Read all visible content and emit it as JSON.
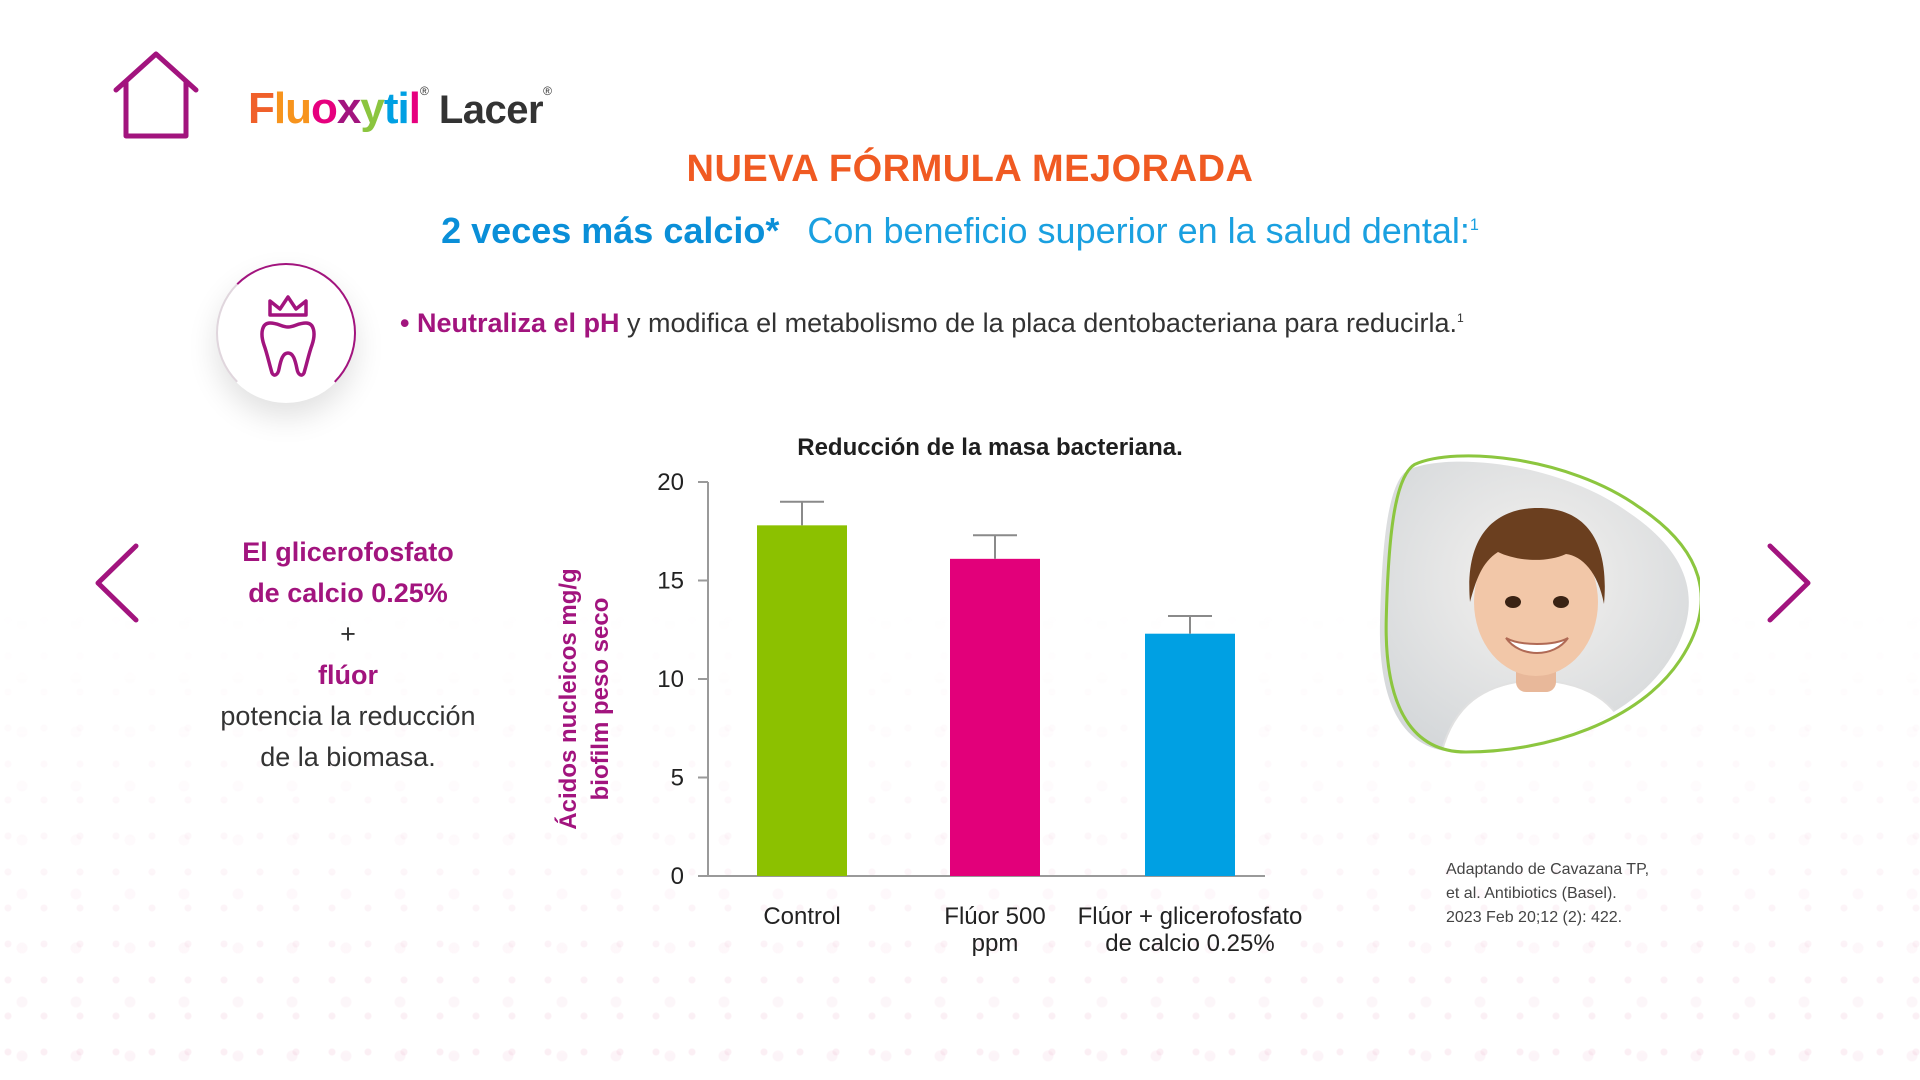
{
  "logo": {
    "brand_letters": [
      "F",
      "l",
      "u",
      "o",
      "x",
      "y",
      "t",
      "i",
      "l"
    ],
    "brand_colors": [
      "#f0602a",
      "#f7941d",
      "#f7941d",
      "#e6007e",
      "#a2147e",
      "#8bc53f",
      "#00a0e3",
      "#00a0e3",
      "#e6007e"
    ],
    "reg_mark": "®",
    "company": "Lacer",
    "company_reg": "®"
  },
  "headline": "NUEVA FÓRMULA MEJORADA",
  "subline": {
    "strong": "2 veces más calcio*",
    "text": "Con beneficio superior en la salud dental:",
    "ref": "1"
  },
  "bullet": {
    "marker": "•",
    "strong": "Neutraliza el pH",
    "text": " y modifica el metabolismo de la placa dentobacteriana para reducirla.",
    "ref": "1"
  },
  "side_text": {
    "line1": "El glicerofosfato",
    "line2": "de calcio 0.25%",
    "plus": "+",
    "line3": "flúor",
    "line4": "potencia la reducción",
    "line5": "de la biomasa."
  },
  "colors": {
    "accent_purple": "#a2147e",
    "accent_orange": "#f05a22",
    "accent_blue": "#1aa0e0"
  },
  "chart_data": {
    "type": "bar",
    "title": "Reducción de la masa bacteriana.",
    "ylabel": [
      "Ácidos nucleicos mg/g",
      "biofilm peso seco"
    ],
    "categories": [
      [
        "Control"
      ],
      [
        "Flúor 500",
        "ppm"
      ],
      [
        "Flúor + glicerofosfato",
        "de calcio 0.25%"
      ]
    ],
    "values": [
      17.8,
      16.1,
      12.3
    ],
    "error": [
      1.2,
      1.2,
      0.9
    ],
    "bar_colors": [
      "#8cc100",
      "#e2007a",
      "#00a0e3"
    ],
    "ylim": [
      0,
      20
    ],
    "yticks": [
      0,
      5,
      10,
      15,
      20
    ],
    "grid": false
  },
  "citation": {
    "line1": "Adaptando de Cavazana TP,",
    "line2": "et al. Antibiotics (Basel).",
    "line3": "2023 Feb 20;12 (2): 422."
  }
}
